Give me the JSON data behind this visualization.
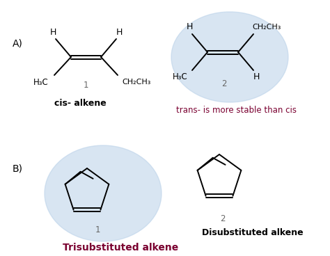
{
  "bg_color": "#ffffff",
  "circle_color": "#b8d0e8",
  "circle_alpha": 0.55,
  "dark_red": "#7a0030",
  "black": "#000000",
  "gray": "#666666",
  "label_A": "A)",
  "label_B": "B)",
  "cis_label": "cis- alkene",
  "trans_stable_label": "trans- is more stable than cis",
  "tri_label": "Trisubstituted alkene",
  "disub_label": "Disubstituted alkene"
}
